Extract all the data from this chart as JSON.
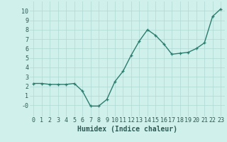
{
  "x": [
    0,
    1,
    2,
    3,
    4,
    5,
    6,
    7,
    8,
    9,
    10,
    11,
    12,
    13,
    14,
    15,
    16,
    17,
    18,
    19,
    20,
    21,
    22,
    23
  ],
  "y": [
    2.3,
    2.3,
    2.2,
    2.2,
    2.2,
    2.3,
    1.5,
    -0.1,
    -0.1,
    0.6,
    2.5,
    3.6,
    5.3,
    6.8,
    8.0,
    7.4,
    6.5,
    5.4,
    5.5,
    5.6,
    6.0,
    6.6,
    9.4,
    10.2
  ],
  "line_color": "#2d7d6f",
  "marker": "+",
  "marker_size": 3,
  "bg_color": "#cff0eb",
  "grid_color": "#aed8d2",
  "xlabel": "Humidex (Indice chaleur)",
  "xlim": [
    -0.5,
    23.5
  ],
  "ylim": [
    -1.2,
    11
  ],
  "yticks": [
    0,
    1,
    2,
    3,
    4,
    5,
    6,
    7,
    8,
    9,
    10
  ],
  "ytick_labels": [
    "-0",
    "1",
    "2",
    "3",
    "4",
    "5",
    "6",
    "7",
    "8",
    "9",
    "10"
  ],
  "xticks": [
    0,
    1,
    2,
    3,
    4,
    5,
    6,
    7,
    8,
    9,
    10,
    11,
    12,
    13,
    14,
    15,
    16,
    17,
    18,
    19,
    20,
    21,
    22,
    23
  ],
  "font_color": "#2d5a54",
  "xlabel_fontsize": 7,
  "tick_fontsize": 6,
  "linewidth": 1.0
}
